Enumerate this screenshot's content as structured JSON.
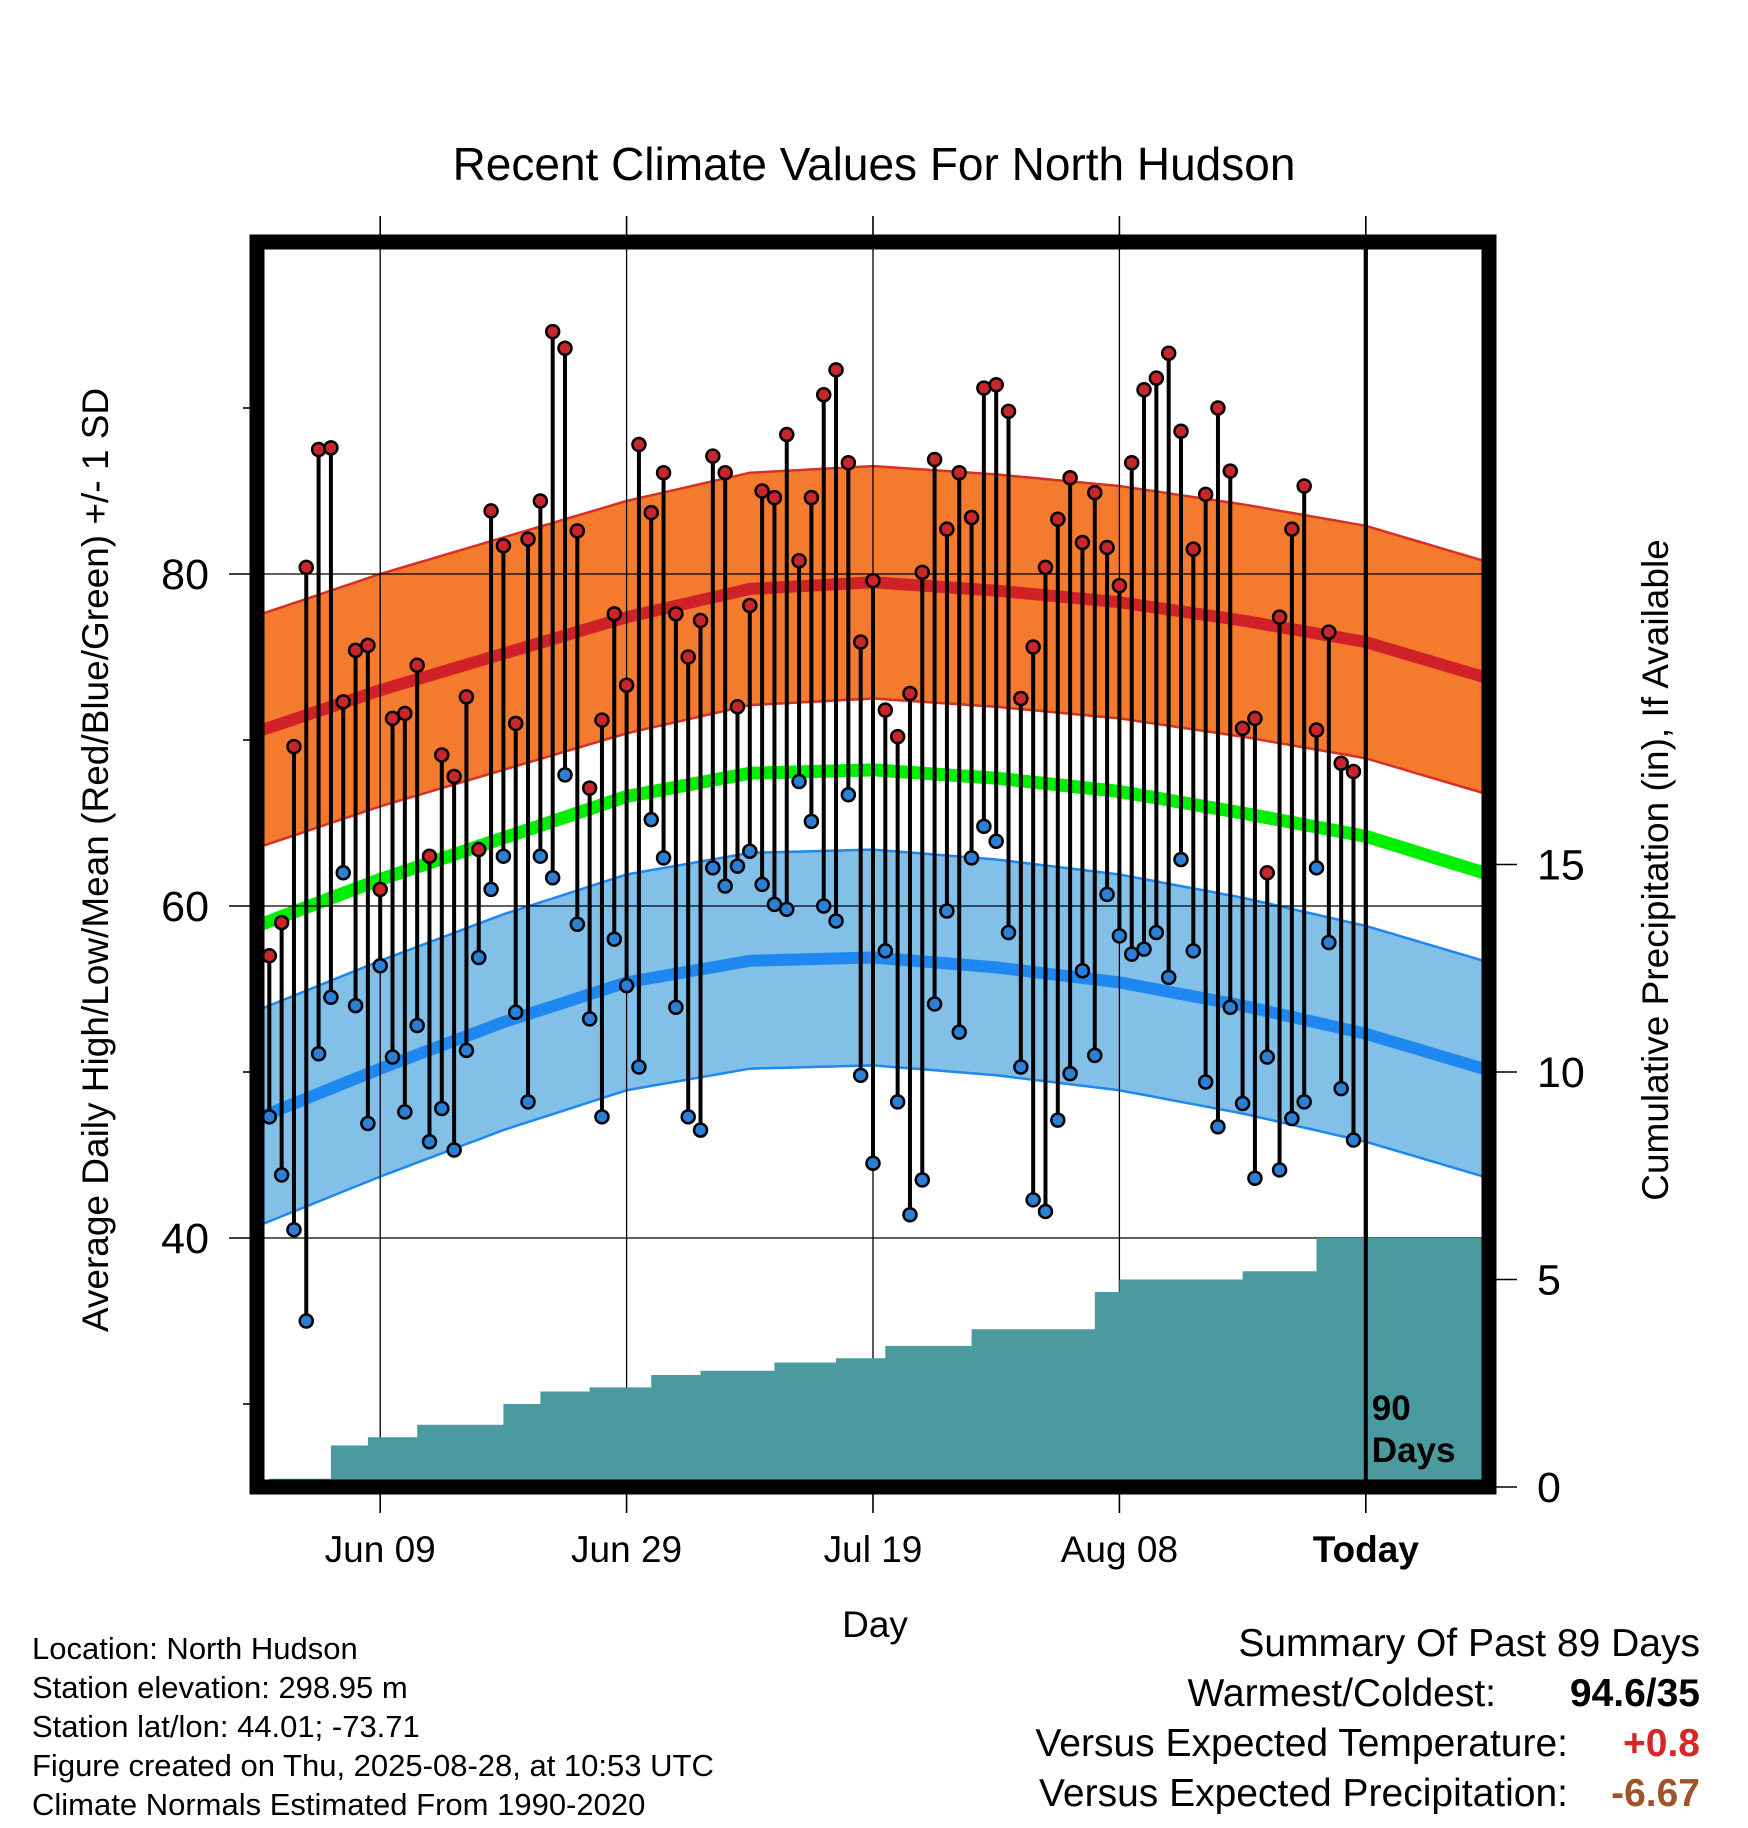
{
  "chart_data": {
    "type": "line",
    "title": "Recent Climate Values For North Hudson",
    "xlabel": "Day",
    "ylabel": "Average Daily High/Low/Mean (Red/Blue/Green) +/- 1 SD",
    "y2label": "Cumulative Precipitation (in), If Available",
    "x_ticks": [
      "Jun 09",
      "Jun 29",
      "Jul 19",
      "Aug 08",
      "Today"
    ],
    "y_ticks": [
      "40",
      "60",
      "80"
    ],
    "y2_ticks": [
      "0",
      "5",
      "10",
      "15"
    ],
    "ylim": [
      25,
      100
    ],
    "y2lim": [
      0,
      30
    ],
    "window_label": "90\nDays",
    "window_label_lines": [
      "90",
      "Days"
    ],
    "x_range_days": [
      -90,
      10
    ],
    "x_tick_days": [
      -80,
      -60,
      -40,
      -20,
      0
    ],
    "normals": {
      "days": [
        -90,
        -80,
        -70,
        -60,
        -50,
        -40,
        -30,
        -20,
        -10,
        0,
        10
      ],
      "high_mean": [
        70.5,
        73.0,
        75.2,
        77.4,
        79.1,
        79.5,
        79.0,
        78.3,
        77.2,
        75.9,
        73.7
      ],
      "high_sd": 7,
      "low_mean": [
        47.2,
        50.2,
        53.0,
        55.4,
        56.7,
        56.9,
        56.3,
        55.4,
        54.0,
        52.3,
        50.1
      ],
      "low_sd": 6.5,
      "mean": [
        58.8,
        61.6,
        64.1,
        66.6,
        68.0,
        68.2,
        67.7,
        66.9,
        65.6,
        64.2,
        61.9
      ]
    },
    "series": [
      {
        "name": "High",
        "values": [
          57,
          59,
          69.6,
          80.4,
          87.5,
          87.6,
          72.3,
          75.4,
          75.7,
          61,
          71.3,
          71.6,
          74.5,
          63,
          69.1,
          67.8,
          72.6,
          63.4,
          83.8,
          81.7,
          71,
          82.1,
          84.4,
          94.6,
          93.6,
          82.6,
          67.1,
          71.2,
          77.6,
          73.3,
          87.8,
          83.7,
          86.1,
          77.6,
          75,
          77.2,
          87.1,
          86.1,
          72,
          78.1,
          85,
          84.6,
          88.4,
          80.8,
          84.6,
          90.8,
          92.3,
          86.7,
          75.9,
          79.6,
          71.8,
          70.2,
          72.8,
          80.1,
          86.9,
          82.7,
          86.1,
          83.4,
          91.2,
          91.4,
          89.8,
          72.5,
          75.6,
          80.4,
          83.3,
          85.8,
          81.9,
          84.9,
          81.6,
          79.3,
          86.7,
          91.1,
          91.8,
          93.3,
          88.6,
          81.5,
          84.8,
          90,
          86.2,
          70.7,
          71.3,
          62,
          77.4,
          82.7,
          85.3,
          70.6,
          76.5,
          68.6,
          68.1
        ]
      },
      {
        "name": "Low",
        "values": [
          47.3,
          43.8,
          40.5,
          35,
          51.1,
          54.5,
          62,
          54,
          46.9,
          56.4,
          50.9,
          47.6,
          52.8,
          45.8,
          47.8,
          45.3,
          51.3,
          56.9,
          61,
          63,
          53.6,
          48.2,
          63,
          61.7,
          67.9,
          58.9,
          53.2,
          47.3,
          58,
          55.2,
          50.3,
          65.2,
          62.9,
          53.9,
          47.3,
          46.5,
          62.3,
          61.2,
          62.4,
          63.3,
          61.3,
          60.1,
          59.8,
          67.5,
          65.1,
          60,
          59.1,
          66.7,
          49.8,
          44.5,
          57.3,
          48.2,
          41.4,
          43.5,
          54.1,
          59.7,
          52.4,
          62.9,
          64.8,
          63.9,
          58.4,
          50.3,
          42.3,
          41.6,
          47.1,
          49.9,
          56.1,
          51,
          60.7,
          58.2,
          57.1,
          57.4,
          58.4,
          55.7,
          62.8,
          57.3,
          49.4,
          46.7,
          53.9,
          48.1,
          43.6,
          50.9,
          44.1,
          47.2,
          48.2,
          62.3,
          57.8,
          49,
          45.9
        ]
      }
    ],
    "precip_cumulative": [
      {
        "day": -89,
        "value": 0.2
      },
      {
        "day": -84,
        "value": 1.0
      },
      {
        "day": -81,
        "value": 1.2
      },
      {
        "day": -77,
        "value": 1.5
      },
      {
        "day": -70,
        "value": 2.0
      },
      {
        "day": -67,
        "value": 2.3
      },
      {
        "day": -63,
        "value": 2.4
      },
      {
        "day": -58,
        "value": 2.7
      },
      {
        "day": -54,
        "value": 2.8
      },
      {
        "day": -48,
        "value": 3.0
      },
      {
        "day": -43,
        "value": 3.1
      },
      {
        "day": -39,
        "value": 3.4
      },
      {
        "day": -32,
        "value": 3.8
      },
      {
        "day": -22,
        "value": 4.7
      },
      {
        "day": -20,
        "value": 5.0
      },
      {
        "day": -10,
        "value": 5.2
      },
      {
        "day": -4,
        "value": 6.0
      }
    ],
    "legend": "none",
    "grid": true
  },
  "info": {
    "location": "Location: North Hudson",
    "elevation": "Station elevation: 298.95 m",
    "latlon": "Station lat/lon: 44.01; -73.71",
    "created": "Figure created on Thu, 2025-08-28, at 10:53 UTC",
    "normals": "Climate Normals Estimated From 1990-2020"
  },
  "summary": {
    "title": "Summary Of Past 89 Days",
    "warmest_label": "Warmest/Coldest:",
    "warmest_value": "94.6/35",
    "temp_label": "Versus Expected Temperature:",
    "temp_value": "+0.8",
    "precip_label": "Versus Expected Precipitation:",
    "precip_value": "-6.67"
  },
  "colors": {
    "high_band": "#f47a2e",
    "high_line": "#d02128",
    "high_band_edge": "#d73027",
    "low_band": "#82c0e8",
    "low_line": "#1e88f0",
    "low_band_edge": "#1e88f0",
    "mean_line": "#00ee00",
    "precip": "#4a9aa0",
    "high_dot": "#c9262b",
    "low_dot": "#2b7fd4",
    "temp_value": "#d62728",
    "precip_value": "#a0522d"
  }
}
